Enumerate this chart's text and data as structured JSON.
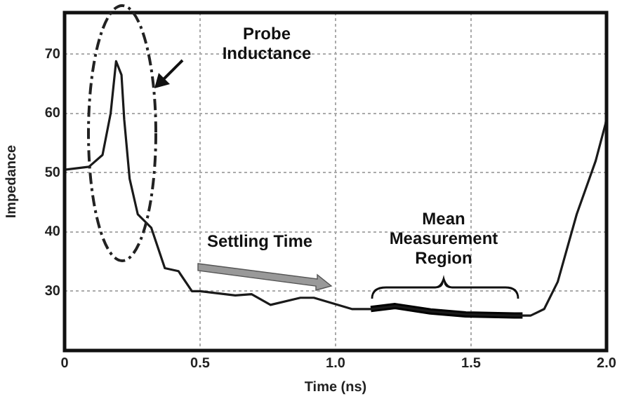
{
  "chart_data": {
    "type": "line",
    "xlabel": "Time (ns)",
    "ylabel": "Impedance",
    "xlim": [
      0,
      2.0
    ],
    "ylim": [
      20,
      77
    ],
    "xticks": [
      0,
      0.5,
      {
        "value": 1.0,
        "label": "1.0"
      },
      1.5,
      {
        "value": 2.0,
        "label": "2.0"
      }
    ],
    "yticks": [
      30,
      40,
      50,
      60,
      70
    ],
    "grid": true,
    "legend": false,
    "marker": "none",
    "line_style": "solid",
    "series": [
      {
        "color": "#1a1a1a",
        "x": [
          0,
          0.09,
          0.14,
          0.17,
          0.19,
          0.21,
          0.22,
          0.24,
          0.27,
          0.32,
          0.37,
          0.42,
          0.47,
          0.5,
          0.63,
          0.69,
          0.76,
          0.87,
          0.92,
          1.06,
          1.13,
          1.22,
          1.35,
          1.48,
          1.66,
          1.72,
          1.77,
          1.82,
          1.89,
          1.96,
          2.0
        ],
        "values": [
          50.5,
          51,
          53,
          60,
          68.8,
          66.5,
          59,
          49,
          43,
          40.7,
          33.9,
          33.4,
          30,
          30,
          29.3,
          29.5,
          27.7,
          28.9,
          28.9,
          27,
          27,
          27.5,
          26.6,
          26.1,
          25.9,
          25.9,
          27,
          31.6,
          43,
          52,
          58.9
        ]
      },
      {
        "color": "#000000",
        "x": [
          1.13,
          1.22,
          1.35,
          1.48,
          1.66,
          1.69
        ],
        "values": [
          27,
          27.5,
          26.6,
          26.1,
          25.9,
          25.9
        ]
      }
    ],
    "annotations": [
      "Probe Inductance",
      "Settling Time",
      "Mean Measurement Region"
    ]
  }
}
